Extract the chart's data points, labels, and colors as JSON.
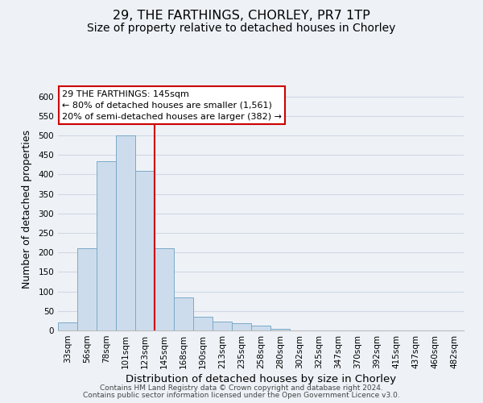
{
  "title": "29, THE FARTHINGS, CHORLEY, PR7 1TP",
  "subtitle": "Size of property relative to detached houses in Chorley",
  "xlabel": "Distribution of detached houses by size in Chorley",
  "ylabel": "Number of detached properties",
  "bar_values": [
    20,
    210,
    435,
    500,
    410,
    210,
    85,
    35,
    22,
    18,
    12,
    5,
    1,
    1,
    1,
    1,
    1,
    1,
    1,
    1,
    1
  ],
  "bar_labels": [
    "33sqm",
    "56sqm",
    "78sqm",
    "101sqm",
    "123sqm",
    "145sqm",
    "168sqm",
    "190sqm",
    "213sqm",
    "235sqm",
    "258sqm",
    "280sqm",
    "302sqm",
    "325sqm",
    "347sqm",
    "370sqm",
    "392sqm",
    "415sqm",
    "437sqm",
    "460sqm",
    "482sqm"
  ],
  "bar_color": "#cddcec",
  "bar_edge_color": "#7aaac8",
  "ylim": [
    0,
    620
  ],
  "yticks": [
    0,
    50,
    100,
    150,
    200,
    250,
    300,
    350,
    400,
    450,
    500,
    550,
    600
  ],
  "vline_index": 5,
  "vline_color": "#cc0000",
  "annotation_text": "29 THE FARTHINGS: 145sqm\n← 80% of detached houses are smaller (1,561)\n20% of semi-detached houses are larger (382) →",
  "annotation_box_color": "#ffffff",
  "annotation_box_edge": "#cc0000",
  "footer_line1": "Contains HM Land Registry data © Crown copyright and database right 2024.",
  "footer_line2": "Contains public sector information licensed under the Open Government Licence v3.0.",
  "title_fontsize": 11.5,
  "subtitle_fontsize": 10,
  "xlabel_fontsize": 9.5,
  "ylabel_fontsize": 9,
  "tick_fontsize": 7.5,
  "annot_fontsize": 8,
  "footer_fontsize": 6.5,
  "background_color": "#eef2f7",
  "plot_bg_color": "#eef2f7",
  "grid_color": "#d0d8e4"
}
